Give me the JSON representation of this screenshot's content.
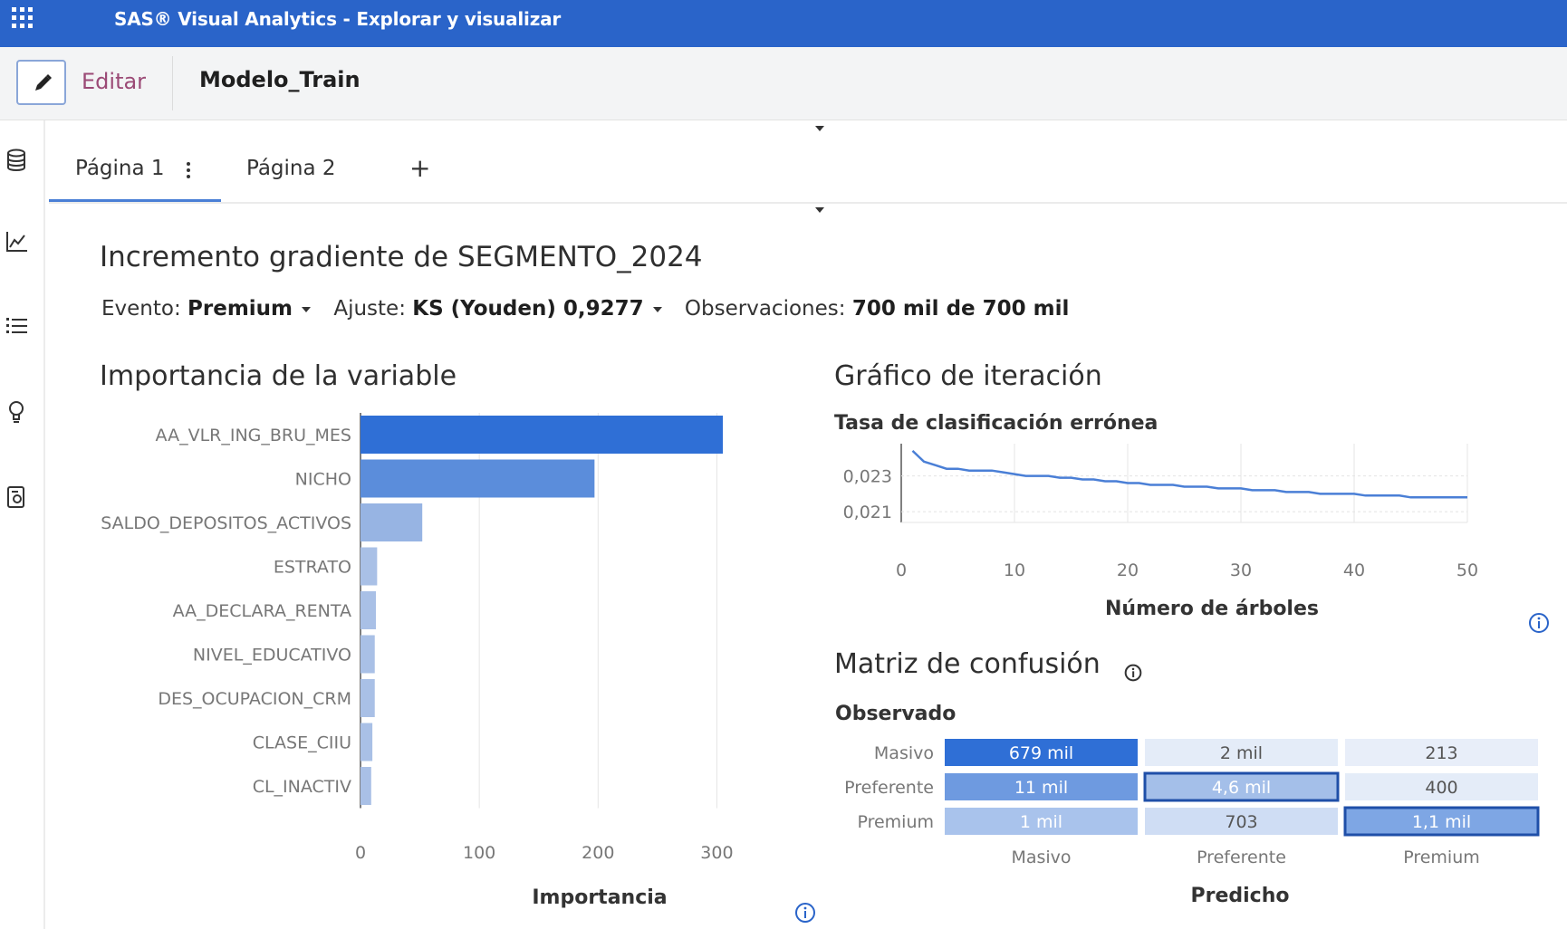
{
  "app": {
    "title": "SAS® Visual Analytics - Explorar y visualizar",
    "apps_icon": "apps-grid-icon"
  },
  "toolbar": {
    "edit_label": "Editar",
    "report_name": "Modelo_Train"
  },
  "tabs": [
    {
      "label": "Página 1",
      "active": true
    },
    {
      "label": "Página 2",
      "active": false
    }
  ],
  "tab_add_label": "+",
  "report": {
    "title": "Incremento gradiente de SEGMENTO_2024",
    "event_label": "Evento:",
    "event_value": "Premium",
    "fit_label": "Ajuste:",
    "fit_value": "KS (Youden) 0,9277",
    "obs_label": "Observaciones:",
    "obs_value": "700 mil de 700 mil"
  },
  "chart_data": [
    {
      "type": "bar",
      "title": "Importancia de la variable",
      "orientation": "horizontal",
      "categories": [
        "AA_VLR_ING_BRU_MES",
        "NICHO",
        "SALDO_DEPOSITOS_ACTIVOS",
        "ESTRATO",
        "AA_DECLARA_RENTA",
        "NIVEL_EDUCATIVO",
        "DES_OCUPACION_CRM",
        "CLASE_CIIU",
        "CL_INACTIV"
      ],
      "values": [
        305,
        197,
        52,
        14,
        13,
        12,
        12,
        10,
        9
      ],
      "xlabel": "Importancia",
      "xlim": [
        0,
        305
      ],
      "xticks": [
        "0",
        "100",
        "200",
        "300"
      ],
      "colors": [
        "#2f6fd6",
        "#5b8ddb",
        "#97b4e3",
        "#a9c0e6",
        "#a9c0e6",
        "#a9c0e6",
        "#a9c0e6",
        "#a9c0e6",
        "#a9c0e6"
      ]
    },
    {
      "type": "line",
      "title": "Gráfico de iteración",
      "ylabel": "Tasa de clasificación errónea",
      "xlabel": "Número de árboles",
      "x": [
        1,
        2,
        3,
        4,
        5,
        6,
        7,
        8,
        9,
        10,
        11,
        12,
        13,
        14,
        15,
        16,
        17,
        18,
        19,
        20,
        21,
        22,
        23,
        24,
        25,
        26,
        27,
        28,
        29,
        30,
        31,
        32,
        33,
        34,
        35,
        36,
        37,
        38,
        39,
        40,
        41,
        42,
        43,
        44,
        45,
        46,
        47,
        48,
        49,
        50
      ],
      "y": [
        0.0244,
        0.0238,
        0.0236,
        0.0234,
        0.0234,
        0.0233,
        0.0233,
        0.0233,
        0.0232,
        0.0231,
        0.023,
        0.023,
        0.023,
        0.0229,
        0.0229,
        0.0228,
        0.0228,
        0.0227,
        0.0227,
        0.0226,
        0.0226,
        0.0225,
        0.0225,
        0.0225,
        0.0224,
        0.0224,
        0.0224,
        0.0223,
        0.0223,
        0.0223,
        0.0222,
        0.0222,
        0.0222,
        0.0221,
        0.0221,
        0.0221,
        0.022,
        0.022,
        0.022,
        0.022,
        0.0219,
        0.0219,
        0.0219,
        0.0219,
        0.0218,
        0.0218,
        0.0218,
        0.0218,
        0.0218,
        0.0218
      ],
      "xlim": [
        0,
        50
      ],
      "ylim": [
        0.0204,
        0.0248
      ],
      "xticks": [
        "0",
        "10",
        "20",
        "30",
        "40",
        "50"
      ],
      "yticks": [
        {
          "v": 0.021,
          "label": "0,021"
        },
        {
          "v": 0.023,
          "label": "0,023"
        }
      ],
      "color": "#4a7fd6"
    },
    {
      "type": "heatmap",
      "title": "Matriz de confusión",
      "ylabel": "Observado",
      "xlabel": "Predicho",
      "rows": [
        "Masivo",
        "Preferente",
        "Premium"
      ],
      "cols": [
        "Masivo",
        "Preferente",
        "Premium"
      ],
      "cells": [
        [
          {
            "label": "679 mil",
            "color": "#2f6fd6",
            "text": "#ffffff",
            "outlined": false
          },
          {
            "label": "2 mil",
            "color": "#e4ecf8",
            "text": "#555555",
            "outlined": false
          },
          {
            "label": "213",
            "color": "#e8eef9",
            "text": "#555555",
            "outlined": false
          }
        ],
        [
          {
            "label": "11 mil",
            "color": "#6e9ae0",
            "text": "#ffffff",
            "outlined": false
          },
          {
            "label": "4,6 mil",
            "color": "#a4bfe9",
            "text": "#ffffff",
            "outlined": true
          },
          {
            "label": "400",
            "color": "#e4ecf8",
            "text": "#555555",
            "outlined": false
          }
        ],
        [
          {
            "label": "1 mil",
            "color": "#a9c3ec",
            "text": "#ffffff",
            "outlined": false
          },
          {
            "label": "703",
            "color": "#cfddf4",
            "text": "#555555",
            "outlined": false
          },
          {
            "label": "1,1 mil",
            "color": "#7ea6e4",
            "text": "#ffffff",
            "outlined": true
          }
        ]
      ]
    }
  ]
}
